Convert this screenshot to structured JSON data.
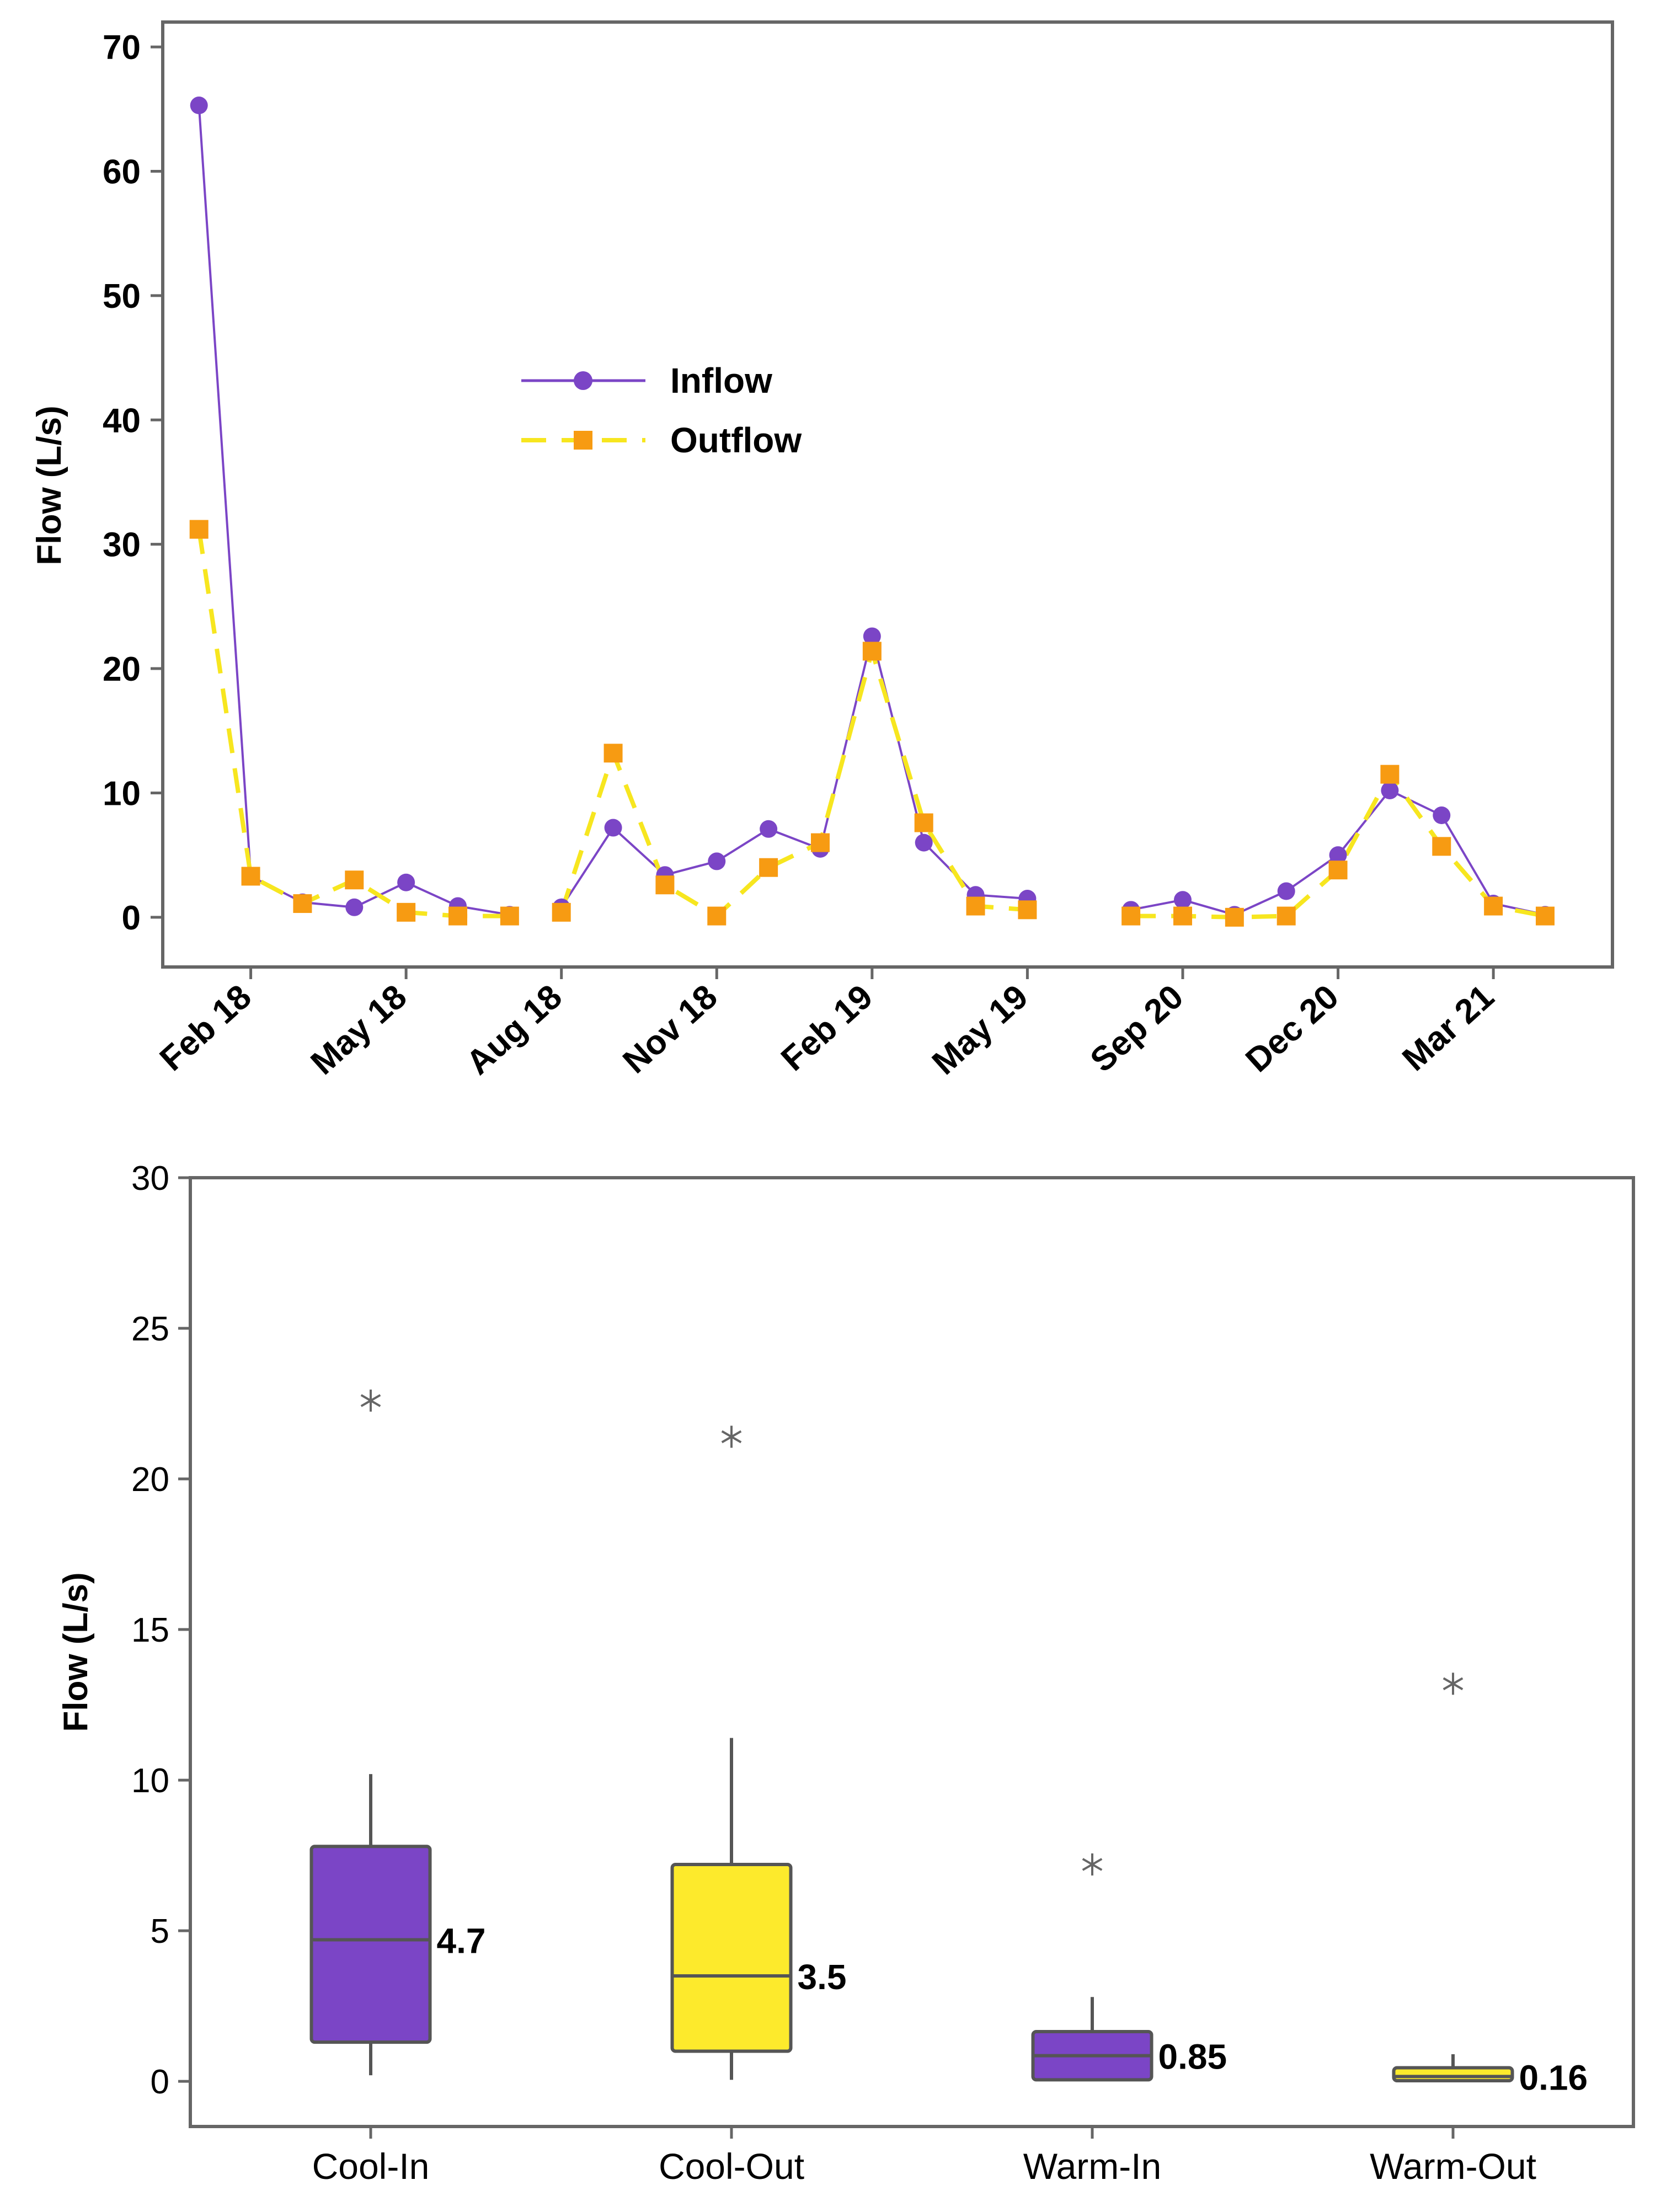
{
  "chart_data": [
    {
      "type": "line",
      "ylabel": "Flow (L/s)",
      "xlabel": "",
      "ylim": [
        -4,
        72
      ],
      "yticks": [
        0,
        10,
        20,
        30,
        40,
        50,
        60,
        70
      ],
      "xlim": [
        0.3,
        28.3
      ],
      "xticks": [
        {
          "label": "Feb 18",
          "pos": 2
        },
        {
          "label": "May 18",
          "pos": 5
        },
        {
          "label": "Aug 18",
          "pos": 8
        },
        {
          "label": "Nov 18",
          "pos": 11
        },
        {
          "label": "Feb 19",
          "pos": 14
        },
        {
          "label": "May 19",
          "pos": 17
        },
        {
          "label": "Sep 20",
          "pos": 20
        },
        {
          "label": "Dec 20",
          "pos": 23
        },
        {
          "label": "Mar 21",
          "pos": 26
        }
      ],
      "legend": {
        "position": "upper-middle"
      },
      "series": [
        {
          "name": "Inflow",
          "color": "#7b45c6",
          "style": "solid",
          "marker": "circle",
          "segments": [
            [
              [
                1,
                65.3
              ],
              [
                2,
                3.3
              ],
              [
                3,
                1.2
              ],
              [
                4,
                0.8
              ],
              [
                5,
                2.8
              ],
              [
                6,
                0.9
              ],
              [
                7,
                0.2
              ]
            ],
            [
              [
                8,
                0.8
              ],
              [
                9,
                7.2
              ],
              [
                10,
                3.4
              ],
              [
                11,
                4.5
              ],
              [
                12,
                7.1
              ],
              [
                13,
                5.5
              ],
              [
                14,
                22.6
              ],
              [
                15,
                6.0
              ],
              [
                16,
                1.8
              ],
              [
                17,
                1.5
              ]
            ],
            [
              [
                19,
                0.6
              ],
              [
                20,
                1.4
              ],
              [
                21,
                0.2
              ],
              [
                22,
                2.1
              ],
              [
                23,
                5.0
              ],
              [
                24,
                10.2
              ],
              [
                25,
                8.2
              ],
              [
                26,
                1.1
              ],
              [
                27,
                0.2
              ]
            ]
          ]
        },
        {
          "name": "Outflow",
          "color": "#f7e61f",
          "marker_color": "#f79b12",
          "style": "dashed",
          "marker": "square",
          "segments": [
            [
              [
                1,
                31.2
              ],
              [
                2,
                3.3
              ],
              [
                3,
                1.1
              ],
              [
                4,
                3.0
              ],
              [
                5,
                0.4
              ],
              [
                6,
                0.1
              ],
              [
                7,
                0.1
              ]
            ],
            [
              [
                8,
                0.4
              ],
              [
                9,
                13.2
              ],
              [
                10,
                2.6
              ],
              [
                11,
                0.1
              ],
              [
                12,
                4.0
              ],
              [
                13,
                6.0
              ],
              [
                14,
                21.4
              ],
              [
                15,
                7.6
              ],
              [
                16,
                0.9
              ],
              [
                17,
                0.6
              ]
            ],
            [
              [
                19,
                0.1
              ],
              [
                20,
                0.1
              ],
              [
                21,
                0.0
              ],
              [
                22,
                0.1
              ],
              [
                23,
                3.8
              ],
              [
                24,
                11.5
              ],
              [
                25,
                5.7
              ],
              [
                26,
                0.9
              ],
              [
                27,
                0.1
              ]
            ]
          ]
        }
      ]
    },
    {
      "type": "box",
      "ylabel": "Flow (L/s)",
      "xlabel": "",
      "ylim": [
        -1.5,
        30
      ],
      "yticks": [
        0,
        5,
        10,
        15,
        20,
        25,
        30
      ],
      "categories": [
        "Cool-In",
        "Cool-Out",
        "Warm-In",
        "Warm-Out"
      ],
      "boxes": [
        {
          "name": "Cool-In",
          "min": 0.2,
          "q1": 1.3,
          "median": 4.7,
          "q3": 7.8,
          "max": 10.2,
          "outliers": [
            22.6
          ],
          "color": "#7b45c6",
          "median_label": "4.7"
        },
        {
          "name": "Cool-Out",
          "min": 0.05,
          "q1": 1.0,
          "median": 3.5,
          "q3": 7.2,
          "max": 11.4,
          "outliers": [
            21.4
          ],
          "color": "#fdea2c",
          "median_label": "3.5"
        },
        {
          "name": "Warm-In",
          "min": 0.05,
          "q1": 0.05,
          "median": 0.85,
          "q3": 1.65,
          "max": 2.8,
          "outliers": [
            7.2
          ],
          "color": "#7b45c6",
          "median_label": "0.85"
        },
        {
          "name": "Warm-Out",
          "min": 0.0,
          "q1": 0.02,
          "median": 0.16,
          "q3": 0.45,
          "max": 0.9,
          "outliers": [
            13.2
          ],
          "color": "#fdea2c",
          "median_label": "0.16"
        }
      ]
    }
  ]
}
